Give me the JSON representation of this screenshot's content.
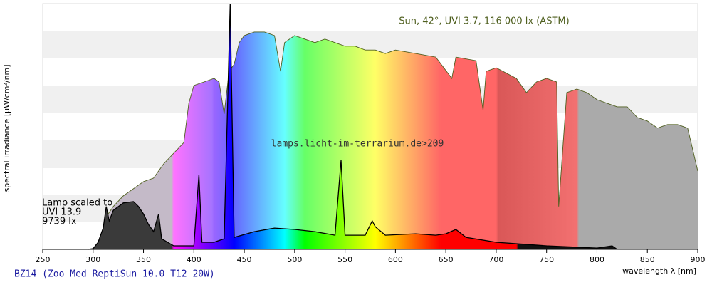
{
  "chart_data": {
    "type": "area",
    "xlabel": "wavelength λ [nm]",
    "ylabel": "spectral irradiance [µW/cm²/nm]",
    "xlim": [
      250,
      900
    ],
    "xticks": [
      250,
      300,
      350,
      400,
      450,
      500,
      550,
      600,
      650,
      700,
      750,
      800,
      850,
      900
    ],
    "ylim": [
      0,
      90
    ],
    "annotations": [
      "Lamp scaled to",
      "UVI 13.9",
      "9739 lx"
    ],
    "watermark": "lamps.licht-im-terrarium.de>209",
    "series": [
      {
        "name": "Sun, 42°, UVI 3.7, 116 000 lx (ASTM)",
        "color": "#4f5f1f",
        "x": [
          300,
          305,
          310,
          315,
          320,
          330,
          340,
          350,
          360,
          370,
          380,
          390,
          395,
          400,
          410,
          420,
          425,
          430,
          435,
          440,
          445,
          450,
          460,
          470,
          480,
          486,
          490,
          500,
          510,
          520,
          530,
          540,
          550,
          560,
          570,
          580,
          590,
          600,
          620,
          640,
          656,
          660,
          680,
          687,
          690,
          700,
          720,
          730,
          740,
          750,
          760,
          762,
          770,
          780,
          790,
          800,
          810,
          820,
          830,
          840,
          850,
          860,
          870,
          880,
          890,
          900
        ],
        "values": [
          0,
          1.3,
          5.2,
          13,
          15.7,
          19.6,
          22.2,
          24.8,
          26.1,
          31.3,
          35.2,
          39.1,
          53.5,
          60,
          61.3,
          62.6,
          61.3,
          49.6,
          65.2,
          67.8,
          75.7,
          78.3,
          79.6,
          79.6,
          78.3,
          65.2,
          75.7,
          78.3,
          77,
          75.7,
          77,
          75.7,
          74.4,
          74.4,
          73,
          73,
          71.7,
          73,
          71.7,
          70.4,
          62.6,
          70.4,
          69.1,
          50.9,
          65.2,
          66.5,
          62.6,
          57.4,
          61.3,
          62.6,
          61.3,
          15.7,
          57.4,
          58.7,
          57.4,
          54.8,
          53.5,
          52.2,
          52.2,
          48.3,
          47,
          44.4,
          45.7,
          45.7,
          44.4,
          28.7
        ]
      },
      {
        "name": "BZ14 (Zoo Med ReptiSun 10.0 T12 20W)",
        "color": "#000000",
        "x": [
          295,
          300,
          305,
          310,
          313,
          316,
          320,
          330,
          340,
          345,
          350,
          355,
          360,
          365,
          368,
          380,
          400,
          405,
          408,
          420,
          430,
          436,
          440,
          460,
          480,
          500,
          520,
          540,
          546,
          550,
          570,
          577,
          580,
          590,
          620,
          640,
          650,
          660,
          670,
          700,
          750,
          800,
          815,
          820
        ],
        "values": [
          0,
          0.3,
          2.6,
          7.8,
          15.7,
          10.4,
          14.3,
          17,
          17.5,
          15.7,
          13,
          9.1,
          6.5,
          13,
          3.9,
          1.3,
          1.3,
          27.4,
          2.6,
          2.6,
          3.9,
          90,
          4.4,
          6.5,
          7.8,
          7.3,
          6.5,
          5.2,
          32.6,
          5.2,
          5.2,
          10.4,
          8.3,
          5.2,
          5.7,
          5.2,
          5.7,
          7.3,
          4.4,
          2.6,
          1.3,
          0.5,
          1.3,
          0
        ]
      }
    ]
  }
}
